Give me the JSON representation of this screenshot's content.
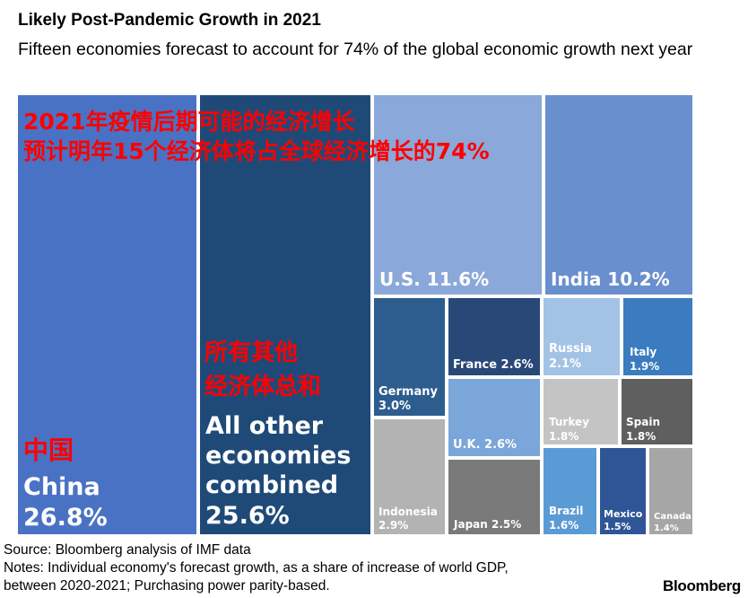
{
  "title": "Likely Post-Pandemic Growth in 2021",
  "subtitle": "Fifteen economies forecast to account for 74% of the global economic growth next year",
  "overlay_chinese": {
    "title_line1": "2021年疫情后期可能的经济增长",
    "title_line2": "预计明年15个经济体将占全球经济增长的74%",
    "others_line1": "所有其他",
    "others_line2": "经济体总和",
    "china": "中国"
  },
  "source_line": "Source: Bloomberg analysis of IMF data",
  "notes_line1": "Notes: Individual economy's forecast growth, as a share of increase of world GDP,",
  "notes_line2": "between 2020-2021; Purchasing power parity-based.",
  "brand": "Bloomberg",
  "colors": {
    "china": "#4a72c4",
    "others": "#1f4a78",
    "us": "#8aa8d9",
    "india": "#6a8fcf",
    "dark_gray": "#595959",
    "light_gray": "#b3b3b3"
  },
  "chart_data": {
    "type": "treemap",
    "unit": "% of world GDP growth",
    "items": [
      {
        "id": "china",
        "name": "China",
        "label": "China",
        "value_label": "26.8%",
        "value": 26.8,
        "color": "#4a72c4"
      },
      {
        "id": "others",
        "name": "All other economies combined",
        "label": "All other economies combined",
        "value_label": "25.6%",
        "value": 25.6,
        "color": "#1f4a78"
      },
      {
        "id": "us",
        "name": "U.S.",
        "label": "U.S. 11.6%",
        "value": 11.6,
        "color": "#8aa8d9"
      },
      {
        "id": "india",
        "name": "India",
        "label": "India 10.2%",
        "value": 10.2,
        "color": "#6a8fcf"
      },
      {
        "id": "germany",
        "name": "Germany",
        "label": "Germany",
        "value_label": "3.0%",
        "value": 3.0,
        "color": "#2d5d8e"
      },
      {
        "id": "france",
        "name": "France",
        "label": "France 2.6%",
        "value": 2.6,
        "color": "#284878"
      },
      {
        "id": "indonesia",
        "name": "Indonesia",
        "label": "Indonesia",
        "value_label": "2.9%",
        "value": 2.9,
        "color": "#b3b3b3"
      },
      {
        "id": "uk",
        "name": "U.K.",
        "label": "U.K. 2.6%",
        "value": 2.6,
        "color": "#7aa6d9"
      },
      {
        "id": "japan",
        "name": "Japan",
        "label": "Japan 2.5%",
        "value": 2.5,
        "color": "#7a7a7a"
      },
      {
        "id": "russia",
        "name": "Russia",
        "label": "Russia",
        "value_label": "2.1%",
        "value": 2.1,
        "color": "#a3c3e6"
      },
      {
        "id": "italy",
        "name": "Italy",
        "label": "Italy",
        "value_label": "1.9%",
        "value": 1.9,
        "color": "#3a7cbf"
      },
      {
        "id": "turkey",
        "name": "Turkey",
        "label": "Turkey",
        "value_label": "1.8%",
        "value": 1.8,
        "color": "#c4c4c4"
      },
      {
        "id": "spain",
        "name": "Spain",
        "label": "Spain",
        "value_label": "1.8%",
        "value": 1.8,
        "color": "#5f5f5f"
      },
      {
        "id": "brazil",
        "name": "Brazil",
        "label": "Brazil",
        "value_label": "1.6%",
        "value": 1.6,
        "color": "#5b9bd5"
      },
      {
        "id": "mexico",
        "name": "Mexico",
        "label": "Mexico",
        "value_label": "1.5%",
        "value": 1.5,
        "color": "#2f5597"
      },
      {
        "id": "canada",
        "name": "Canada",
        "label": "Canada",
        "value_label": "1.4%",
        "value": 1.4,
        "color": "#a6a6a6"
      }
    ]
  }
}
